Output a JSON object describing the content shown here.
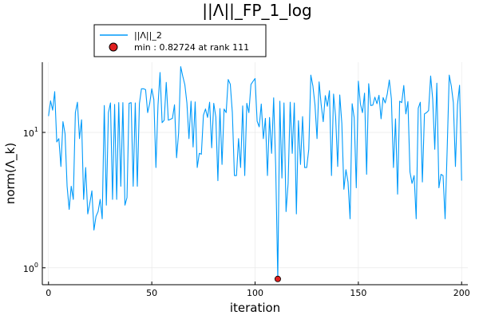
{
  "chart_data": {
    "type": "line",
    "title": "||Λ||_FP_1_log",
    "xlabel": "iteration",
    "ylabel": "norm(Λ_k)",
    "xlim": [
      -3,
      203
    ],
    "ylim": [
      0.75,
      33
    ],
    "y_scale": "log10",
    "grid": true,
    "legend_position": "top-left (outside)",
    "x_ticks": [
      0,
      50,
      100,
      150,
      200
    ],
    "y_ticks": [
      {
        "value": 1,
        "label": "10",
        "exponent": "0"
      },
      {
        "value": 10,
        "label": "10",
        "exponent": "1"
      }
    ],
    "series": [
      {
        "name": "||Λ||_2",
        "color": "#009AFA",
        "x": [
          0,
          1,
          2,
          3,
          4,
          5,
          6,
          7,
          8,
          9,
          10,
          11,
          12,
          13,
          14,
          15,
          16,
          17,
          18,
          19,
          20,
          21,
          22,
          23,
          24,
          25,
          26,
          27,
          28,
          29,
          30,
          31,
          32,
          33,
          34,
          35,
          36,
          37,
          38,
          39,
          40,
          41,
          42,
          43,
          44,
          45,
          46,
          47,
          48,
          49,
          50,
          51,
          52,
          53,
          54,
          55,
          56,
          57,
          58,
          59,
          60,
          61,
          62,
          63,
          64,
          65,
          66,
          67,
          68,
          69,
          70,
          71,
          72,
          73,
          74,
          75,
          76,
          77,
          78,
          79,
          80,
          81,
          82,
          83,
          84,
          85,
          86,
          87,
          88,
          89,
          90,
          91,
          92,
          93,
          94,
          95,
          96,
          97,
          98,
          99,
          100,
          101,
          102,
          103,
          104,
          105,
          106,
          107,
          108,
          109,
          110,
          111,
          112,
          113,
          114,
          115,
          116,
          117,
          118,
          119,
          120,
          121,
          122,
          123,
          124,
          125,
          126,
          127,
          128,
          129,
          130,
          131,
          132,
          133,
          134,
          135,
          136,
          137,
          138,
          139,
          140,
          141,
          142,
          143,
          144,
          145,
          146,
          147,
          148,
          149,
          150,
          151,
          152,
          153,
          154,
          155,
          156,
          157,
          158,
          159,
          160,
          161,
          162,
          163,
          164,
          165,
          166,
          167,
          168,
          169,
          170,
          171,
          172,
          173,
          174,
          175,
          176,
          177,
          178,
          179,
          180,
          181,
          182,
          183,
          184,
          185,
          186,
          187,
          188,
          189,
          190,
          191,
          192,
          193,
          194,
          195,
          196,
          197,
          198,
          199,
          200
        ],
        "y": [
          13.2,
          17.1,
          14.6,
          20.0,
          8.5,
          9.0,
          5.6,
          12.0,
          9.8,
          4.0,
          2.7,
          4.0,
          3.2,
          14.0,
          16.7,
          9.0,
          12.4,
          3.2,
          5.5,
          2.5,
          3.0,
          3.7,
          1.9,
          2.4,
          2.6,
          3.2,
          2.3,
          15.8,
          2.9,
          14.0,
          16.5,
          3.2,
          16.1,
          3.2,
          16.6,
          4.0,
          16.6,
          2.9,
          3.3,
          16.4,
          16.6,
          4.0,
          16.5,
          4.0,
          16.3,
          21.0,
          21.0,
          20.7,
          14.0,
          16.4,
          21.0,
          17.5,
          5.5,
          15.8,
          27.7,
          11.8,
          12.3,
          23.4,
          12.3,
          12.5,
          12.7,
          16.0,
          6.5,
          10.0,
          30.6,
          26.0,
          22.5,
          16.5,
          9.0,
          17.0,
          7.8,
          16.8,
          5.5,
          7.0,
          6.9,
          13.4,
          14.9,
          12.9,
          16.7,
          7.7,
          16.4,
          13.0,
          4.4,
          15.0,
          5.8,
          14.9,
          14.0,
          24.6,
          22.7,
          14.0,
          4.8,
          4.8,
          9.0,
          5.5,
          15.7,
          4.8,
          16.4,
          14.0,
          22.6,
          23.8,
          25.0,
          12.1,
          11.0,
          16.2,
          9.0,
          12.7,
          4.8,
          12.9,
          7.0,
          18.0,
          5.5,
          0.83,
          17.0,
          4.6,
          16.5,
          2.6,
          4.2,
          16.7,
          7.0,
          16.5,
          2.5,
          12.2,
          5.8,
          13.1,
          5.5,
          5.5,
          7.5,
          26.5,
          22.0,
          16.0,
          9.0,
          23.6,
          16.0,
          12.0,
          18.7,
          15.6,
          20.3,
          4.8,
          19.2,
          13.0,
          5.6,
          18.9,
          11.7,
          3.8,
          5.3,
          4.3,
          2.3,
          16.3,
          12.8,
          3.9,
          23.9,
          16.2,
          14.0,
          19.5,
          4.9,
          22.9,
          15.8,
          15.9,
          18.2,
          16.3,
          18.8,
          12.6,
          18.1,
          16.5,
          19.2,
          24.4,
          17.7,
          5.5,
          12.6,
          3.5,
          17.0,
          16.6,
          22.2,
          13.7,
          16.9,
          5.1,
          4.2,
          4.8,
          2.3,
          15.1,
          16.7,
          4.3,
          13.7,
          14.0,
          14.5,
          26.1,
          17.6,
          7.5,
          23.1,
          3.9,
          4.9,
          4.8,
          2.3,
          7.5,
          26.5,
          22.0,
          16.6,
          5.6,
          16.0,
          22.3,
          4.4
        ]
      }
    ],
    "markers": [
      {
        "name": "min : 0.82724 at rank 111",
        "x": 111,
        "y": 0.82724,
        "color": "#E02020"
      }
    ]
  }
}
